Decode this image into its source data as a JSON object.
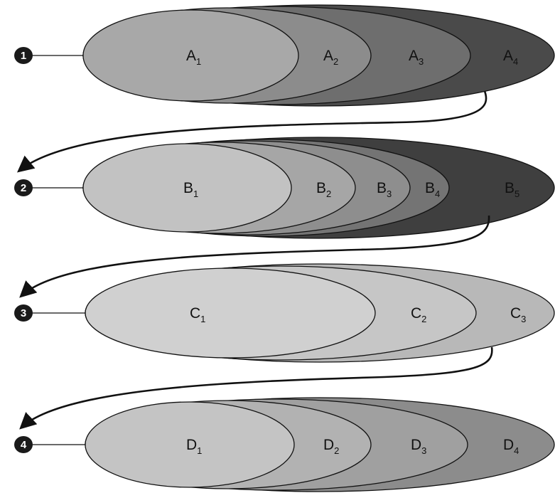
{
  "colors": {
    "background": "#ffffff",
    "stroke": "#111111",
    "marker": "#1a1a1a"
  },
  "stages": [
    {
      "number": "1",
      "ellipses": [
        {
          "letter": "A",
          "index": "1",
          "fill": "#a8a8a8"
        },
        {
          "letter": "A",
          "index": "2",
          "fill": "#8c8c8c"
        },
        {
          "letter": "A",
          "index": "3",
          "fill": "#6e6e6e"
        },
        {
          "letter": "A",
          "index": "4",
          "fill": "#4a4a4a"
        }
      ]
    },
    {
      "number": "2",
      "ellipses": [
        {
          "letter": "B",
          "index": "1",
          "fill": "#c2c2c2"
        },
        {
          "letter": "B",
          "index": "2",
          "fill": "#a6a6a6"
        },
        {
          "letter": "B",
          "index": "3",
          "fill": "#8e8e8e"
        },
        {
          "letter": "B",
          "index": "4",
          "fill": "#747474"
        },
        {
          "letter": "B",
          "index": "5",
          "fill": "#3f3f3f"
        }
      ]
    },
    {
      "number": "3",
      "ellipses": [
        {
          "letter": "C",
          "index": "1",
          "fill": "#d0d0d0"
        },
        {
          "letter": "C",
          "index": "2",
          "fill": "#c6c6c6"
        },
        {
          "letter": "C",
          "index": "3",
          "fill": "#b8b8b8"
        }
      ]
    },
    {
      "number": "4",
      "ellipses": [
        {
          "letter": "D",
          "index": "1",
          "fill": "#c4c4c4"
        },
        {
          "letter": "D",
          "index": "2",
          "fill": "#b2b2b2"
        },
        {
          "letter": "D",
          "index": "3",
          "fill": "#a0a0a0"
        },
        {
          "letter": "D",
          "index": "4",
          "fill": "#8c8c8c"
        }
      ]
    }
  ]
}
